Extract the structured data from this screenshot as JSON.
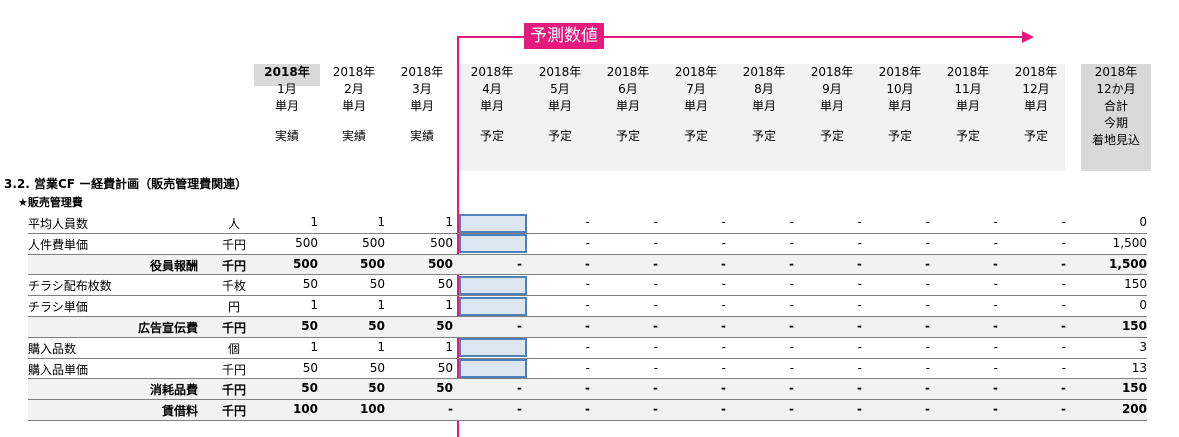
{
  "forecast_label": "予測数値",
  "columns": [
    {
      "year": "2018年",
      "month": "1月",
      "period": "単月",
      "status": "実績",
      "bold": true
    },
    {
      "year": "2018年",
      "month": "2月",
      "period": "単月",
      "status": "実績"
    },
    {
      "year": "2018年",
      "month": "3月",
      "period": "単月",
      "status": "実績"
    },
    {
      "year": "2018年",
      "month": "4月",
      "period": "単月",
      "status": "予定"
    },
    {
      "year": "2018年",
      "month": "5月",
      "period": "単月",
      "status": "予定"
    },
    {
      "year": "2018年",
      "month": "6月",
      "period": "単月",
      "status": "予定"
    },
    {
      "year": "2018年",
      "month": "7月",
      "period": "単月",
      "status": "予定"
    },
    {
      "year": "2018年",
      "month": "8月",
      "period": "単月",
      "status": "予定"
    },
    {
      "year": "2018年",
      "month": "9月",
      "period": "単月",
      "status": "予定"
    },
    {
      "year": "2018年",
      "month": "10月",
      "period": "単月",
      "status": "予定"
    },
    {
      "year": "2018年",
      "month": "11月",
      "period": "単月",
      "status": "予定"
    },
    {
      "year": "2018年",
      "month": "12月",
      "period": "単月",
      "status": "予定"
    }
  ],
  "total_column": {
    "year": "2018年",
    "line2": "12か月",
    "line3": "合計",
    "line4": "今期",
    "line5": "着地見込"
  },
  "section_title": "3.2. 営業CF ー経費計画（販売管理費関連）",
  "subsection_title": "★販売管理費",
  "rows": [
    {
      "label": "平均人員数",
      "unit": "人",
      "values": [
        "1",
        "1",
        "1",
        "",
        "-",
        "-",
        "-",
        "-",
        "-",
        "-",
        "-",
        "-"
      ],
      "total": "0",
      "input": true
    },
    {
      "label": "人件費単価",
      "unit": "千円",
      "values": [
        "500",
        "500",
        "500",
        "",
        "-",
        "-",
        "-",
        "-",
        "-",
        "-",
        "-",
        "-"
      ],
      "total": "1,500",
      "input": true
    },
    {
      "label": "役員報酬",
      "unit": "千円",
      "values": [
        "500",
        "500",
        "500",
        "-",
        "-",
        "-",
        "-",
        "-",
        "-",
        "-",
        "-",
        "-"
      ],
      "total": "1,500",
      "subtotal": true
    },
    {
      "label": "チラシ配布枚数",
      "unit": "千枚",
      "values": [
        "50",
        "50",
        "50",
        "",
        "-",
        "-",
        "-",
        "-",
        "-",
        "-",
        "-",
        "-"
      ],
      "total": "150",
      "input": true
    },
    {
      "label": "チラシ単価",
      "unit": "円",
      "values": [
        "1",
        "1",
        "1",
        "",
        "-",
        "-",
        "-",
        "-",
        "-",
        "-",
        "-",
        "-"
      ],
      "total": "0",
      "input": true
    },
    {
      "label": "広告宣伝費",
      "unit": "千円",
      "values": [
        "50",
        "50",
        "50",
        "-",
        "-",
        "-",
        "-",
        "-",
        "-",
        "-",
        "-",
        "-"
      ],
      "total": "150",
      "subtotal": true
    },
    {
      "label": "購入品数",
      "unit": "個",
      "values": [
        "1",
        "1",
        "1",
        "",
        "-",
        "-",
        "-",
        "-",
        "-",
        "-",
        "-",
        "-"
      ],
      "total": "3",
      "input": true
    },
    {
      "label": "購入品単価",
      "unit": "千円",
      "values": [
        "50",
        "50",
        "50",
        "",
        "-",
        "-",
        "-",
        "-",
        "-",
        "-",
        "-",
        "-"
      ],
      "total": "13",
      "input": true
    },
    {
      "label": "消耗品費",
      "unit": "千円",
      "values": [
        "50",
        "50",
        "50",
        "-",
        "-",
        "-",
        "-",
        "-",
        "-",
        "-",
        "-",
        "-"
      ],
      "total": "150",
      "subtotal": true
    },
    {
      "label": "賃借料",
      "unit": "千円",
      "values": [
        "100",
        "100",
        "-",
        "-",
        "-",
        "-",
        "-",
        "-",
        "-",
        "-",
        "-",
        "-"
      ],
      "total": "200",
      "subtotal": true
    }
  ],
  "colors": {
    "accent": "#e6197e",
    "input_fill": "#dce6f1",
    "input_border": "#4f81bd"
  }
}
